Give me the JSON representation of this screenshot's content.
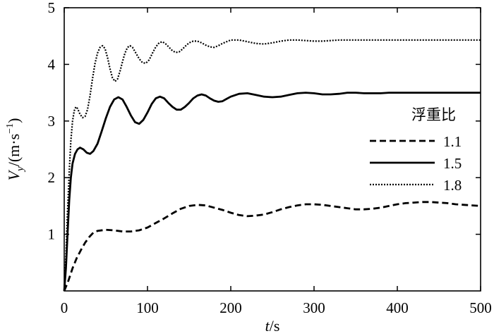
{
  "chart_data": {
    "type": "line",
    "xlabel": {
      "var": "t",
      "unit": "/s"
    },
    "ylabel": {
      "var": "V",
      "sub": "y",
      "unit_prefix": "/(m·s",
      "unit_sup": "−1",
      "unit_suffix": ")"
    },
    "xlim": [
      0,
      500
    ],
    "ylim": [
      0,
      5
    ],
    "x_ticks": [
      0,
      100,
      200,
      300,
      400,
      500
    ],
    "y_ticks": [
      1,
      2,
      3,
      4,
      5
    ],
    "grid": false,
    "legend": {
      "title": "浮重比",
      "placement": "right"
    },
    "series": [
      {
        "name": "1.1",
        "dash": "dashed",
        "points": [
          [
            0,
            0
          ],
          [
            5,
            0.18
          ],
          [
            10,
            0.4
          ],
          [
            15,
            0.58
          ],
          [
            20,
            0.72
          ],
          [
            25,
            0.85
          ],
          [
            30,
            0.95
          ],
          [
            35,
            1.03
          ],
          [
            40,
            1.06
          ],
          [
            50,
            1.08
          ],
          [
            60,
            1.07
          ],
          [
            70,
            1.05
          ],
          [
            80,
            1.05
          ],
          [
            90,
            1.07
          ],
          [
            100,
            1.12
          ],
          [
            110,
            1.2
          ],
          [
            120,
            1.28
          ],
          [
            130,
            1.37
          ],
          [
            140,
            1.45
          ],
          [
            150,
            1.5
          ],
          [
            160,
            1.52
          ],
          [
            170,
            1.51
          ],
          [
            180,
            1.47
          ],
          [
            190,
            1.43
          ],
          [
            200,
            1.38
          ],
          [
            210,
            1.34
          ],
          [
            220,
            1.32
          ],
          [
            230,
            1.33
          ],
          [
            240,
            1.35
          ],
          [
            250,
            1.39
          ],
          [
            260,
            1.44
          ],
          [
            270,
            1.48
          ],
          [
            280,
            1.51
          ],
          [
            290,
            1.53
          ],
          [
            300,
            1.53
          ],
          [
            310,
            1.52
          ],
          [
            320,
            1.5
          ],
          [
            330,
            1.48
          ],
          [
            340,
            1.46
          ],
          [
            350,
            1.44
          ],
          [
            360,
            1.44
          ],
          [
            370,
            1.45
          ],
          [
            380,
            1.47
          ],
          [
            390,
            1.5
          ],
          [
            400,
            1.53
          ],
          [
            410,
            1.55
          ],
          [
            420,
            1.56
          ],
          [
            430,
            1.57
          ],
          [
            440,
            1.57
          ],
          [
            450,
            1.56
          ],
          [
            460,
            1.55
          ],
          [
            470,
            1.53
          ],
          [
            480,
            1.52
          ],
          [
            490,
            1.51
          ],
          [
            500,
            1.5
          ]
        ]
      },
      {
        "name": "1.5",
        "dash": "solid",
        "points": [
          [
            0,
            0
          ],
          [
            2,
            0.4
          ],
          [
            4,
            1.0
          ],
          [
            6,
            1.6
          ],
          [
            8,
            2.0
          ],
          [
            10,
            2.25
          ],
          [
            13,
            2.42
          ],
          [
            16,
            2.5
          ],
          [
            19,
            2.53
          ],
          [
            23,
            2.5
          ],
          [
            27,
            2.44
          ],
          [
            31,
            2.42
          ],
          [
            35,
            2.47
          ],
          [
            40,
            2.6
          ],
          [
            45,
            2.82
          ],
          [
            50,
            3.05
          ],
          [
            55,
            3.25
          ],
          [
            60,
            3.38
          ],
          [
            65,
            3.42
          ],
          [
            70,
            3.38
          ],
          [
            75,
            3.25
          ],
          [
            80,
            3.1
          ],
          [
            85,
            2.98
          ],
          [
            90,
            2.95
          ],
          [
            95,
            3.02
          ],
          [
            100,
            3.15
          ],
          [
            105,
            3.3
          ],
          [
            110,
            3.4
          ],
          [
            115,
            3.43
          ],
          [
            120,
            3.4
          ],
          [
            125,
            3.32
          ],
          [
            130,
            3.25
          ],
          [
            135,
            3.2
          ],
          [
            140,
            3.2
          ],
          [
            145,
            3.25
          ],
          [
            150,
            3.32
          ],
          [
            155,
            3.4
          ],
          [
            160,
            3.45
          ],
          [
            165,
            3.47
          ],
          [
            170,
            3.45
          ],
          [
            175,
            3.4
          ],
          [
            180,
            3.36
          ],
          [
            185,
            3.34
          ],
          [
            190,
            3.35
          ],
          [
            195,
            3.39
          ],
          [
            200,
            3.43
          ],
          [
            210,
            3.48
          ],
          [
            220,
            3.49
          ],
          [
            230,
            3.46
          ],
          [
            240,
            3.43
          ],
          [
            250,
            3.42
          ],
          [
            260,
            3.43
          ],
          [
            270,
            3.46
          ],
          [
            280,
            3.49
          ],
          [
            290,
            3.5
          ],
          [
            300,
            3.49
          ],
          [
            310,
            3.47
          ],
          [
            320,
            3.47
          ],
          [
            330,
            3.48
          ],
          [
            340,
            3.5
          ],
          [
            350,
            3.5
          ],
          [
            360,
            3.49
          ],
          [
            370,
            3.49
          ],
          [
            380,
            3.49
          ],
          [
            390,
            3.5
          ],
          [
            400,
            3.5
          ],
          [
            420,
            3.5
          ],
          [
            440,
            3.5
          ],
          [
            460,
            3.5
          ],
          [
            480,
            3.5
          ],
          [
            500,
            3.5
          ]
        ]
      },
      {
        "name": "1.8",
        "dash": "dotted",
        "points": [
          [
            0,
            0
          ],
          [
            2,
            0.6
          ],
          [
            4,
            1.4
          ],
          [
            6,
            2.1
          ],
          [
            8,
            2.65
          ],
          [
            10,
            3.0
          ],
          [
            12,
            3.18
          ],
          [
            14,
            3.25
          ],
          [
            16,
            3.22
          ],
          [
            19,
            3.12
          ],
          [
            22,
            3.06
          ],
          [
            25,
            3.08
          ],
          [
            28,
            3.2
          ],
          [
            31,
            3.45
          ],
          [
            34,
            3.75
          ],
          [
            37,
            4.02
          ],
          [
            40,
            4.2
          ],
          [
            43,
            4.3
          ],
          [
            46,
            4.33
          ],
          [
            49,
            4.28
          ],
          [
            52,
            4.12
          ],
          [
            55,
            3.92
          ],
          [
            58,
            3.76
          ],
          [
            61,
            3.7
          ],
          [
            64,
            3.74
          ],
          [
            67,
            3.88
          ],
          [
            70,
            4.05
          ],
          [
            73,
            4.2
          ],
          [
            76,
            4.3
          ],
          [
            79,
            4.33
          ],
          [
            82,
            4.3
          ],
          [
            86,
            4.2
          ],
          [
            90,
            4.1
          ],
          [
            94,
            4.03
          ],
          [
            98,
            4.02
          ],
          [
            102,
            4.08
          ],
          [
            106,
            4.2
          ],
          [
            110,
            4.31
          ],
          [
            114,
            4.38
          ],
          [
            118,
            4.4
          ],
          [
            122,
            4.36
          ],
          [
            126,
            4.3
          ],
          [
            130,
            4.24
          ],
          [
            134,
            4.21
          ],
          [
            138,
            4.22
          ],
          [
            142,
            4.27
          ],
          [
            146,
            4.33
          ],
          [
            150,
            4.38
          ],
          [
            155,
            4.41
          ],
          [
            160,
            4.41
          ],
          [
            165,
            4.38
          ],
          [
            170,
            4.34
          ],
          [
            175,
            4.31
          ],
          [
            180,
            4.3
          ],
          [
            185,
            4.33
          ],
          [
            190,
            4.37
          ],
          [
            195,
            4.4
          ],
          [
            200,
            4.43
          ],
          [
            210,
            4.43
          ],
          [
            220,
            4.4
          ],
          [
            230,
            4.37
          ],
          [
            240,
            4.36
          ],
          [
            250,
            4.38
          ],
          [
            260,
            4.41
          ],
          [
            270,
            4.43
          ],
          [
            280,
            4.43
          ],
          [
            290,
            4.42
          ],
          [
            300,
            4.41
          ],
          [
            310,
            4.41
          ],
          [
            320,
            4.42
          ],
          [
            330,
            4.43
          ],
          [
            340,
            4.43
          ],
          [
            360,
            4.43
          ],
          [
            380,
            4.43
          ],
          [
            400,
            4.43
          ],
          [
            420,
            4.43
          ],
          [
            440,
            4.43
          ],
          [
            460,
            4.43
          ],
          [
            480,
            4.43
          ],
          [
            500,
            4.43
          ]
        ]
      }
    ]
  }
}
